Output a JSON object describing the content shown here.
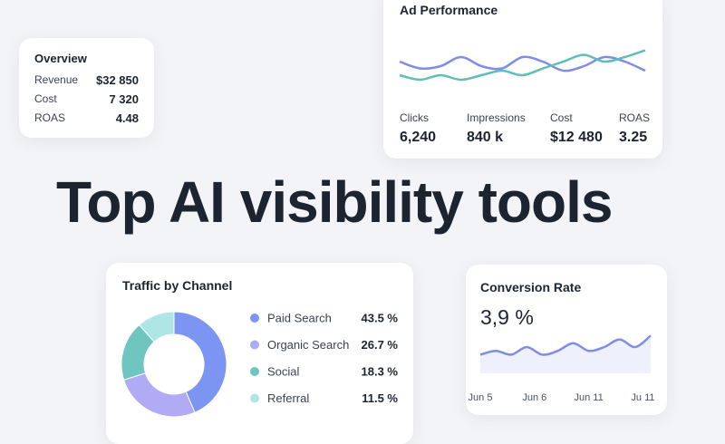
{
  "headline": "Top AI visibility tools",
  "overview": {
    "title": "Overview",
    "rows": [
      [
        "Revenue",
        "$32 850"
      ],
      [
        "Cost",
        "7 320"
      ],
      [
        "ROAS",
        "4.48"
      ]
    ]
  },
  "ad_performance": {
    "title": "Ad Performance",
    "metrics": [
      {
        "label": "Clicks",
        "value": "6,240"
      },
      {
        "label": "Impressions",
        "value": "840 k"
      },
      {
        "label": "Cost",
        "value": "$12 480"
      },
      {
        "label": "ROAS",
        "value": "3.25"
      }
    ]
  },
  "traffic": {
    "title": "Traffic by Channel"
  },
  "conversion": {
    "title": "Conversion Rate",
    "value": "3,9 %"
  },
  "chart_data": [
    {
      "type": "line",
      "x": [
        0,
        1,
        2,
        3,
        4,
        5,
        6,
        7,
        8,
        9,
        10,
        11,
        12
      ],
      "xlim": [
        0,
        12
      ],
      "ylim": [
        0,
        10
      ],
      "series": [
        {
          "name": "Clicks",
          "color": "#7f8ce8",
          "values": [
            6,
            4.5,
            5,
            7,
            5,
            4.5,
            7,
            6,
            4,
            5,
            7,
            6,
            4
          ]
        },
        {
          "name": "Impressions",
          "color": "#5dbdb9",
          "values": [
            3,
            2,
            3,
            2,
            3,
            4,
            3,
            4.5,
            6,
            7.5,
            6,
            7,
            8.5
          ]
        }
      ]
    },
    {
      "type": "pie",
      "categories": [
        "Paid Search",
        "Organic Search",
        "Social",
        "Referral"
      ],
      "values": [
        43.5,
        26.7,
        18.3,
        11.5
      ],
      "value_labels": [
        "43.5 %",
        "26.7 %",
        "18.3 %",
        "11.5 %"
      ],
      "colors": [
        "#7d95f2",
        "#b1aaf5",
        "#6fc6c0",
        "#aee5e5"
      ]
    },
    {
      "type": "line",
      "x": [
        0,
        1,
        2,
        3,
        4,
        5,
        6,
        7,
        8,
        9,
        10,
        11
      ],
      "xlim": [
        0,
        11
      ],
      "ylim": [
        0,
        10
      ],
      "xticks": [
        {
          "value": 0,
          "label": "Jun 5"
        },
        {
          "value": 3.5,
          "label": "Jun 6"
        },
        {
          "value": 7,
          "label": "Jun 11"
        },
        {
          "value": 10.5,
          "label": "Ju 11"
        }
      ],
      "series": [
        {
          "name": "Conversion Rate",
          "color": "#7f8ce8",
          "values": [
            3,
            4,
            3,
            5,
            3,
            4,
            6,
            4,
            5,
            7,
            5,
            8
          ]
        }
      ]
    }
  ]
}
